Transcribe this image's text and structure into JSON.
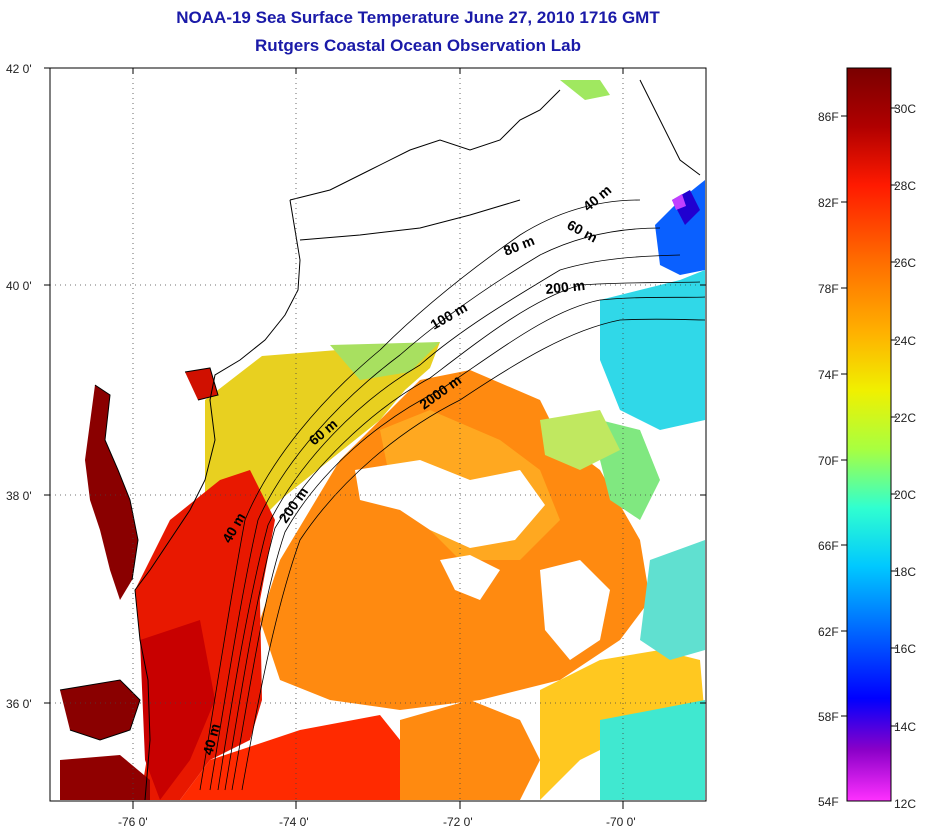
{
  "title": "NOAA-19 Sea Surface Temperature June 27, 2010 1716 GMT",
  "subtitle": "Rutgers Coastal Ocean Observation Lab",
  "map": {
    "lon_ticks": [
      "-76 0'",
      "-74 0'",
      "-72 0'",
      "-70 0'"
    ],
    "lat_ticks": [
      "42 0'",
      "40 0'",
      "38 0'",
      "36 0'"
    ],
    "isobath_labels": [
      "40 m",
      "60 m",
      "80 m",
      "100 m",
      "200 m",
      "2000 m",
      "60 m",
      "200 m",
      "40 m",
      "40 m"
    ]
  },
  "colorbar": {
    "fahrenheit": [
      "86F",
      "82F",
      "78F",
      "74F",
      "70F",
      "66F",
      "62F",
      "58F",
      "54F"
    ],
    "celsius": [
      "30C",
      "28C",
      "26C",
      "24C",
      "22C",
      "20C",
      "18C",
      "16C",
      "14C",
      "12C"
    ],
    "colors": [
      "#7a0000",
      "#c00000",
      "#ff2a00",
      "#ff7a00",
      "#ffc000",
      "#e8f000",
      "#a0ff40",
      "#30ffd0",
      "#00c8ff",
      "#0060ff",
      "#0000ff",
      "#8000c0",
      "#ff30ff"
    ]
  }
}
